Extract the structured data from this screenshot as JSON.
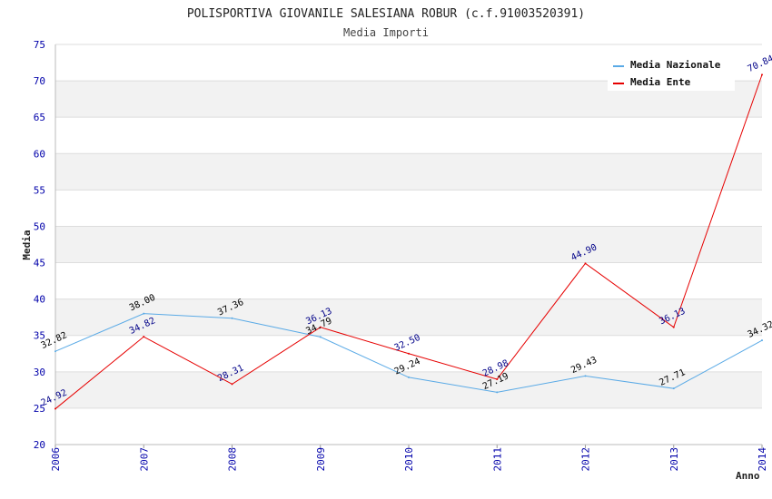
{
  "chart_data": {
    "type": "line",
    "title": "POLISPORTIVA GIOVANILE SALESIANA ROBUR (c.f.91003520391)",
    "subtitle": "Media Importi",
    "xlabel": "Anno",
    "ylabel": "Media",
    "ylim": [
      20,
      75
    ],
    "yticks": [
      "20",
      "25",
      "30",
      "35",
      "40",
      "45",
      "50",
      "55",
      "60",
      "65",
      "70",
      "75"
    ],
    "categories": [
      "2006",
      "2007",
      "2008",
      "2009",
      "2010",
      "2011",
      "2012",
      "2013",
      "2014"
    ],
    "grid": true,
    "legend_position": "top-right",
    "series": [
      {
        "name": "Media Nazionale",
        "color": "#5aaae6",
        "label_color": "#000000",
        "values": [
          32.82,
          38.0,
          37.36,
          34.79,
          29.24,
          27.19,
          29.43,
          27.71,
          34.32
        ],
        "labels": [
          "32.82",
          "38.00",
          "37.36",
          "34.79",
          "29.24",
          "27.19",
          "29.43",
          "27.71",
          "34.32"
        ]
      },
      {
        "name": "Media Ente",
        "color": "#e60000",
        "label_color": "#000088",
        "values": [
          24.92,
          34.82,
          28.31,
          36.13,
          32.5,
          28.98,
          44.9,
          36.13,
          70.84
        ],
        "labels": [
          "24.92",
          "34.82",
          "28.31",
          "36.13",
          "32.50",
          "28.98",
          "44.90",
          "36.13",
          "70.84"
        ]
      }
    ]
  }
}
